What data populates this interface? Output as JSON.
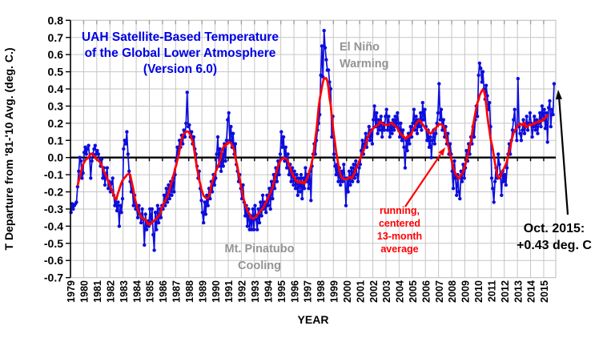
{
  "style": {
    "title_blue": "#0000e6",
    "series_blue": "#0d0ddd",
    "avg_red": "#ff0000",
    "annotation_gray": "#949494",
    "grid_gray": "#c6c6c6",
    "top_tick_gray": "#9e9e9e",
    "axis_black": "#000000",
    "background": "#ffffff"
  },
  "labels": {
    "title_line1": "UAH Satellite-Based Temperature",
    "title_line2": "of the Global Lower Atmosphere",
    "title_line3": "(Version 6.0)",
    "el_nino_line1": "El Niño",
    "el_nino_line2": "Warming",
    "pinatubo_line1": "Mt. Pinatubo",
    "pinatubo_line2": "Cooling",
    "avg_note_line1": "running,",
    "avg_note_line2": "centered",
    "avg_note_line3": "13-month",
    "avg_note_line4": "average",
    "callout_line1": "Oct. 2015:",
    "callout_line2": "+0.43 deg. C",
    "xlabel": "YEAR",
    "ylabel": "T Departure from '81-'10 Avg. (deg. C.)"
  },
  "chart_data": {
    "type": "line",
    "title": "UAH Satellite-Based Temperature of the Global Lower Atmosphere (Version 6.0)",
    "xlabel": "YEAR",
    "ylabel": "T Departure from '81-'10 Avg. (deg. C.)",
    "ylim": [
      -0.7,
      0.8
    ],
    "y_tick_step": 0.1,
    "grid": true,
    "y_ticks": [
      "0.8",
      "0.7",
      "0.6",
      "0.5",
      "0.4",
      "0.3",
      "0.2",
      "0.1",
      "0.0",
      "-0.1",
      "-0.2",
      "-0.3",
      "-0.4",
      "-0.5",
      "-0.6",
      "-0.7"
    ],
    "x_ticks": [
      "1979",
      "1980",
      "1981",
      "1982",
      "1983",
      "1984",
      "1985",
      "1986",
      "1987",
      "1988",
      "1989",
      "1990",
      "1991",
      "1992",
      "1993",
      "1994",
      "1995",
      "1996",
      "1997",
      "1998",
      "1999",
      "2000",
      "2001",
      "2002",
      "2003",
      "2004",
      "2005",
      "2006",
      "2007",
      "2008",
      "2009",
      "2010",
      "2011",
      "2012",
      "2013",
      "2014",
      "2015"
    ],
    "series_info": [
      {
        "name": "monthly temperature anomaly",
        "color": "#0d0ddd",
        "style": "line+markers"
      },
      {
        "name": "running, centered 13-month average",
        "color": "#ff0000",
        "style": "line",
        "derived": "13-month centered mean of monthly values"
      }
    ],
    "monthly": {
      "start": "1979-01",
      "end": "2015-10",
      "values_by_year": [
        [
          -0.32,
          -0.27,
          -0.3,
          -0.28,
          -0.27,
          -0.26,
          -0.17,
          -0.08,
          0.0,
          -0.02,
          -0.12,
          -0.09
        ],
        [
          0.03,
          0.06,
          0.02,
          0.05,
          0.07,
          0.0,
          -0.12,
          -0.02,
          0.02,
          0.05,
          0.07,
          0.02
        ],
        [
          0.04,
          0.02,
          -0.02,
          -0.05,
          -0.01,
          -0.12,
          -0.06,
          -0.16,
          -0.1,
          -0.06,
          -0.18,
          -0.14
        ],
        [
          -0.2,
          -0.15,
          -0.12,
          -0.22,
          -0.28,
          -0.24,
          -0.31,
          -0.26,
          -0.4,
          -0.28,
          -0.32,
          -0.24
        ],
        [
          0.05,
          0.1,
          0.08,
          0.15,
          0.02,
          -0.08,
          -0.14,
          -0.2,
          -0.18,
          -0.28,
          -0.22,
          -0.3
        ],
        [
          -0.3,
          -0.35,
          -0.28,
          -0.33,
          -0.38,
          -0.3,
          -0.36,
          -0.51,
          -0.33,
          -0.42,
          -0.37,
          -0.4
        ],
        [
          -0.3,
          -0.38,
          -0.3,
          -0.45,
          -0.54,
          -0.32,
          -0.42,
          -0.28,
          -0.38,
          -0.3,
          -0.35,
          -0.28
        ],
        [
          -0.3,
          -0.22,
          -0.28,
          -0.18,
          -0.26,
          -0.16,
          -0.24,
          -0.14,
          -0.22,
          -0.12,
          -0.2,
          -0.1
        ],
        [
          -0.02,
          0.06,
          0.02,
          0.1,
          0.06,
          0.13,
          0.08,
          0.16,
          0.12,
          0.2,
          0.38,
          0.18
        ],
        [
          0.19,
          0.12,
          0.15,
          0.08,
          0.12,
          0.05,
          0.02,
          -0.05,
          -0.12,
          -0.08,
          -0.18,
          -0.25
        ],
        [
          -0.32,
          -0.38,
          -0.26,
          -0.33,
          -0.22,
          -0.28,
          -0.18,
          -0.24,
          -0.14,
          -0.2,
          -0.1,
          -0.16
        ],
        [
          -0.12,
          0.02,
          0.12,
          -0.05,
          0.05,
          -0.08,
          0.02,
          -0.05,
          0.08,
          -0.02,
          0.1,
          0.22
        ],
        [
          0.26,
          0.1,
          0.18,
          0.06,
          0.14,
          0.02,
          0.08,
          -0.04,
          -0.08,
          -0.14,
          -0.1,
          -0.18
        ],
        [
          -0.24,
          -0.16,
          -0.26,
          -0.34,
          -0.28,
          -0.4,
          -0.3,
          -0.42,
          -0.34,
          -0.42,
          -0.3,
          -0.42
        ],
        [
          -0.28,
          -0.36,
          -0.42,
          -0.3,
          -0.38,
          -0.26,
          -0.34,
          -0.22,
          -0.3,
          -0.26,
          -0.32,
          -0.22
        ],
        [
          -0.28,
          -0.18,
          -0.3,
          -0.14,
          -0.24,
          -0.1,
          -0.18,
          -0.06,
          -0.14,
          -0.02,
          -0.1,
          0.02
        ],
        [
          0.15,
          0.06,
          0.12,
          -0.02,
          0.06,
          -0.06,
          0.02,
          -0.1,
          -0.04,
          -0.14,
          -0.06,
          -0.16
        ],
        [
          -0.08,
          -0.18,
          -0.1,
          -0.22,
          -0.12,
          -0.2,
          -0.1,
          -0.24,
          -0.12,
          -0.18,
          -0.06,
          -0.14
        ],
        [
          -0.1,
          -0.18,
          -0.08,
          -0.25,
          -0.05,
          0.02,
          0.08,
          0.02,
          0.1,
          0.16,
          0.2,
          0.25
        ],
        [
          0.48,
          0.65,
          0.47,
          0.74,
          0.64,
          0.57,
          0.51,
          0.51,
          0.44,
          0.4,
          0.12,
          0.24
        ],
        [
          0.02,
          -0.05,
          -0.1,
          -0.04,
          -0.14,
          -0.06,
          -0.16,
          -0.08,
          -0.14,
          -0.04,
          -0.12,
          -0.28
        ],
        [
          -0.12,
          -0.2,
          -0.08,
          -0.16,
          -0.06,
          -0.14,
          -0.04,
          -0.12,
          -0.02,
          -0.1,
          -0.14,
          -0.06
        ],
        [
          -0.04,
          0.04,
          0.1,
          0.02,
          0.08,
          0.14,
          0.06,
          0.12,
          0.18,
          0.1,
          0.16,
          0.08
        ],
        [
          0.22,
          0.3,
          0.18,
          0.26,
          0.14,
          0.22,
          0.16,
          0.24,
          0.12,
          0.2,
          0.16,
          0.24
        ],
        [
          0.28,
          0.16,
          0.24,
          0.12,
          0.2,
          0.14,
          0.22,
          0.16,
          0.24,
          0.18,
          0.26,
          0.2
        ],
        [
          0.12,
          0.2,
          0.1,
          0.16,
          0.06,
          -0.06,
          0.1,
          0.04,
          0.14,
          0.08,
          0.18,
          0.12
        ],
        [
          0.2,
          0.28,
          0.16,
          0.24,
          0.14,
          0.22,
          0.18,
          0.26,
          0.16,
          0.32,
          0.22,
          0.28
        ],
        [
          0.18,
          0.1,
          0.16,
          0.06,
          0.12,
          0.0,
          0.1,
          0.16,
          0.08,
          0.14,
          0.2,
          0.26
        ],
        [
          0.43,
          0.22,
          0.28,
          0.16,
          0.22,
          0.12,
          0.18,
          0.08,
          0.14,
          0.02,
          0.08,
          0.02
        ],
        [
          -0.08,
          -0.18,
          -0.02,
          -0.12,
          -0.22,
          -0.1,
          -0.2,
          -0.24,
          -0.08,
          -0.14,
          -0.04,
          -0.12
        ],
        [
          -0.06,
          0.04,
          -0.02,
          0.08,
          0.02,
          0.12,
          0.08,
          0.18,
          0.12,
          0.22,
          0.3,
          0.24
        ],
        [
          0.48,
          0.55,
          0.52,
          0.44,
          0.5,
          0.4,
          0.34,
          0.42,
          0.36,
          0.28,
          0.32,
          0.18
        ],
        [
          -0.12,
          -0.18,
          -0.26,
          -0.14,
          -0.06,
          -0.12,
          0.02,
          -0.04,
          -0.1,
          -0.22,
          -0.08,
          -0.14
        ],
        [
          -0.1,
          -0.16,
          -0.06,
          0.02,
          0.08,
          0.02,
          0.1,
          0.16,
          0.22,
          0.28,
          0.16,
          0.1
        ],
        [
          0.46,
          0.18,
          0.14,
          0.1,
          0.16,
          0.22,
          0.14,
          0.18,
          0.24,
          0.16,
          0.2,
          0.26
        ],
        [
          0.2,
          0.12,
          0.18,
          0.24,
          0.16,
          0.22,
          0.14,
          0.2,
          0.26,
          0.18,
          0.3,
          0.22
        ],
        [
          0.28,
          0.17,
          0.26,
          0.09,
          0.29,
          0.33,
          0.18,
          0.28,
          0.25,
          0.43
        ]
      ]
    },
    "last_point": {
      "label": "Oct. 2015",
      "value_deg_c": 0.43
    },
    "legend_position": "none"
  }
}
